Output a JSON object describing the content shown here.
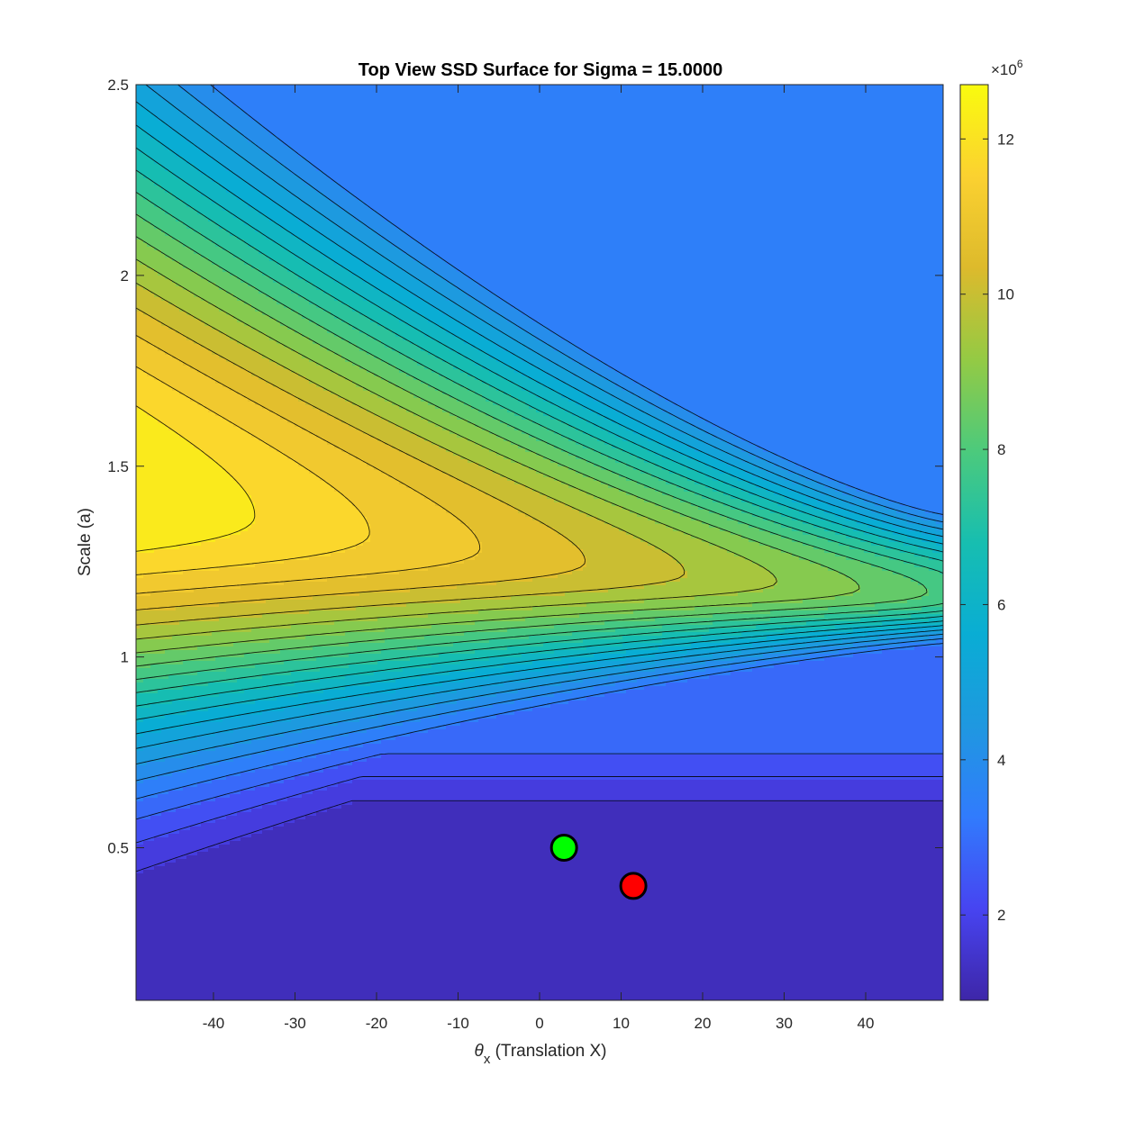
{
  "chart_data": {
    "type": "heatmap",
    "subtype": "filled-contour",
    "title": "Top View SSD Surface for Sigma = 15.0000",
    "xlabel": {
      "symbol": "θ",
      "subscript": "x",
      "text": "(Translation X)"
    },
    "ylabel": "Scale (a)",
    "xlim": [
      -49.5,
      49.5
    ],
    "ylim": [
      0.1,
      2.5
    ],
    "xticks": [
      -40,
      -30,
      -20,
      -10,
      0,
      10,
      20,
      30,
      40
    ],
    "yticks": [
      0.5,
      1,
      1.5,
      2,
      2.5
    ],
    "ytick_labels": [
      "0.5",
      "1",
      "1.5",
      "2",
      "2.5"
    ],
    "colorbar": {
      "multiplier": "×10",
      "exponent": "6",
      "range": [
        0.9,
        12.7
      ],
      "ticks": [
        2,
        4,
        6,
        8,
        10,
        12
      ],
      "colormap": "parula"
    },
    "z_units_note": "SSD values in units of 1e6",
    "surface_features": {
      "ridge_max": {
        "x": -45,
        "y": 1.35,
        "z": 12.7
      },
      "ridge_tip": {
        "x": 39,
        "y": 1.0,
        "z": 7.9
      },
      "valley_min_region": {
        "y_below": 0.5,
        "z": 1.0
      },
      "top_right_plateau": {
        "z": 3.3
      }
    },
    "markers": [
      {
        "name": "green-point",
        "x": 3,
        "y": 0.5,
        "color": "#00ff00"
      },
      {
        "name": "red-point",
        "x": 11.5,
        "y": 0.4,
        "color": "#ff0000"
      }
    ],
    "grid": false
  }
}
